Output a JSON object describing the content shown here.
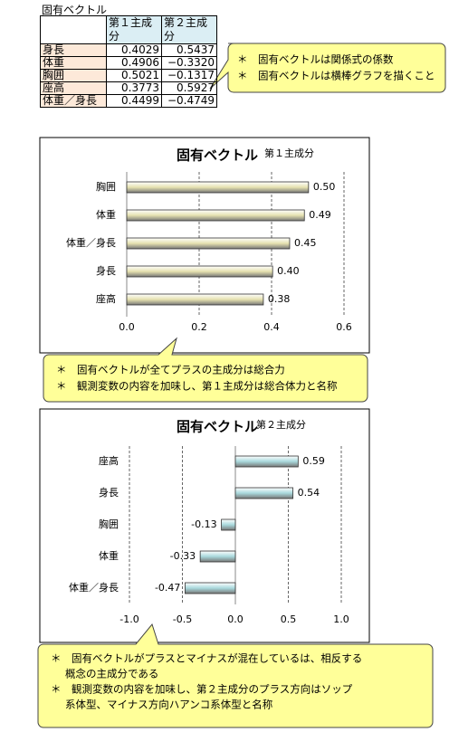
{
  "table": {
    "title": "固有ベクトル",
    "headers": [
      "第１主成分",
      "第２主成分"
    ],
    "rows": [
      [
        "身長",
        "0.4029",
        "0.5437"
      ],
      [
        "体重",
        "0.4906",
        "−0.3320"
      ],
      [
        "胸囲",
        "0.5021",
        "−0.1317"
      ],
      [
        "座高",
        "0.3773",
        "0.5927"
      ],
      [
        "体重／身長",
        "0.4499",
        "−0.4749"
      ]
    ]
  },
  "notes": [
    {
      "lines": [
        "＊　固有ベクトルは関係式の係数",
        "＊　固有ベクトルは横棒グラフを描くこと"
      ]
    },
    {
      "lines": [
        "＊　固有ベクトルが全てプラスの主成分は総合力",
        "＊　観測変数の内容を加味し、第１主成分は総合体力と名称"
      ]
    },
    {
      "lines": [
        "＊　固有ベクトルがプラスとマイナスが混在しているは、相反する",
        "概念の主成分である",
        "＊　観測変数の内容を加味し、第２主成分のプラス方向はソップ",
        "系体型、マイナス方向ハアンコ系体型と名称"
      ]
    }
  ],
  "chart_data": [
    {
      "type": "bar",
      "title": "固有ベクトル",
      "subtitle": "第１主成分",
      "categories": [
        "胸囲",
        "体重",
        "体重／身長",
        "身長",
        "座高"
      ],
      "values": [
        0.5021,
        0.4906,
        0.4499,
        0.4029,
        0.3773
      ],
      "value_labels": [
        "0.50",
        "0.49",
        "0.45",
        "0.40",
        "0.38"
      ],
      "color": "#e6e2b0",
      "xlim": [
        0,
        0.6
      ],
      "xticks": [
        {
          "value": 0,
          "label": "0.0"
        },
        0.2,
        0.4,
        0.6
      ],
      "grid": true
    },
    {
      "type": "bar",
      "title": "固有ベクトル",
      "subtitle": "第２主成分",
      "categories": [
        "座高",
        "身長",
        "胸囲",
        "体重",
        "体重／身長"
      ],
      "values": [
        0.5927,
        0.5437,
        -0.1317,
        -0.332,
        -0.4749
      ],
      "value_labels": [
        "0.59",
        "0.54",
        "-0.13",
        "-0.33",
        "-0.47"
      ],
      "color": "#a9d9dd",
      "xlim": [
        -1,
        1
      ],
      "xticks": [
        {
          "value": -1,
          "label": "-1.0"
        },
        -0.5,
        {
          "value": 0,
          "label": "0.0"
        },
        0.5,
        {
          "value": 1,
          "label": "1.0"
        }
      ],
      "grid": true
    }
  ]
}
